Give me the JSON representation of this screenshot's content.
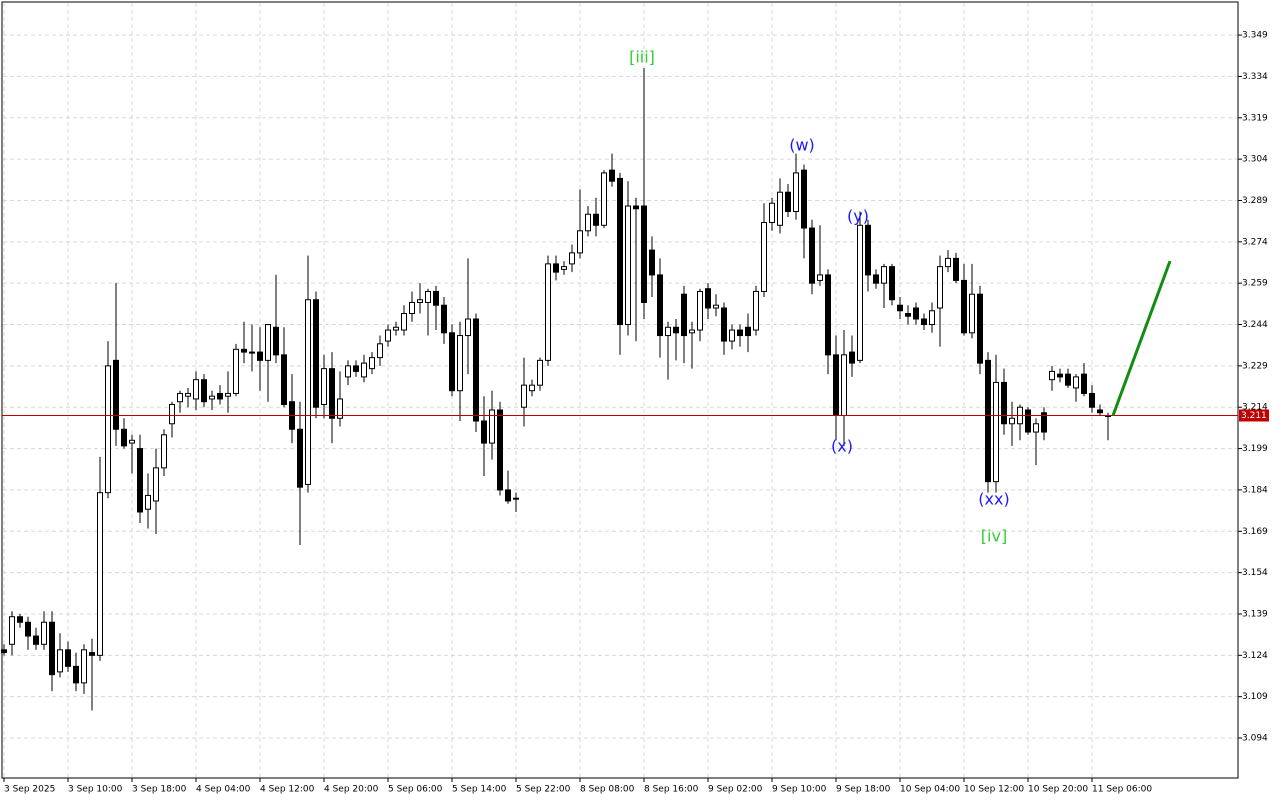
{
  "chart_data": {
    "type": "candlestick",
    "categories": [
      "3 Sep 2025",
      null,
      null,
      null,
      null,
      null,
      null,
      null,
      "3 Sep 10:00",
      null,
      null,
      null,
      null,
      null,
      null,
      null,
      "3 Sep 18:00",
      null,
      null,
      null,
      null,
      null,
      null,
      null,
      "4 Sep 04:00",
      null,
      null,
      null,
      null,
      null,
      null,
      null,
      "4 Sep 12:00",
      null,
      null,
      null,
      null,
      null,
      null,
      null,
      "4 Sep 20:00",
      null,
      null,
      null,
      null,
      null,
      null,
      null,
      "5 Sep 06:00",
      null,
      null,
      null,
      null,
      null,
      null,
      null,
      "5 Sep 14:00",
      null,
      null,
      null,
      null,
      null,
      null,
      null,
      "5 Sep 22:00",
      null,
      null,
      null,
      null,
      null,
      null,
      null,
      "8 Sep 08:00",
      null,
      null,
      null,
      null,
      null,
      null,
      null,
      "8 Sep 16:00",
      null,
      null,
      null,
      null,
      null,
      null,
      null,
      "9 Sep 02:00",
      null,
      null,
      null,
      null,
      null,
      null,
      null,
      "9 Sep 10:00",
      null,
      null,
      null,
      null,
      null,
      null,
      null,
      "9 Sep 18:00",
      null,
      null,
      null,
      null,
      null,
      null,
      null,
      "10 Sep 04:00",
      null,
      null,
      null,
      null,
      null,
      null,
      null,
      "10 Sep 12:00",
      null,
      null,
      null,
      null,
      null,
      null,
      null,
      "10 Sep 20:00",
      null,
      null,
      null,
      null,
      null,
      null,
      null,
      "11 Sep 06:00",
      null,
      null
    ],
    "open": [
      3.126,
      3.128,
      3.138,
      3.136,
      3.131,
      3.128,
      3.136,
      3.118,
      3.126,
      3.12,
      3.114,
      3.125,
      3.124,
      3.183,
      3.231,
      3.206,
      3.201,
      3.199,
      3.177,
      3.18,
      3.192,
      3.208,
      3.216,
      3.218,
      3.217,
      3.224,
      3.217,
      3.219,
      3.218,
      3.219,
      3.235,
      3.234,
      3.234,
      3.231,
      3.243,
      3.233,
      3.216,
      3.206,
      3.186,
      3.253,
      3.215,
      3.228,
      3.21,
      3.225,
      3.229,
      3.225,
      3.228,
      3.232,
      3.238,
      3.242,
      3.242,
      3.248,
      3.252,
      3.252,
      3.256,
      3.251,
      3.241,
      3.22,
      3.24,
      3.246,
      3.209,
      3.201,
      3.213,
      3.184,
      3.181,
      3.214,
      3.22,
      3.222,
      3.231,
      3.266,
      3.264,
      3.266,
      3.27,
      3.278,
      3.284,
      3.28,
      3.3,
      3.297,
      3.244,
      3.287,
      3.287,
      3.271,
      3.262,
      3.24,
      3.243,
      3.255,
      3.241,
      3.242,
      3.257,
      3.25,
      3.25,
      3.238,
      3.242,
      3.243,
      3.242,
      3.256,
      3.281,
      3.28,
      3.292,
      3.285,
      3.3,
      3.279,
      3.26,
      3.262,
      3.233,
      3.211,
      3.234,
      3.231,
      3.28,
      3.262,
      3.259,
      3.265,
      3.251,
      3.248,
      3.25,
      3.246,
      3.244,
      3.25,
      3.265,
      3.268,
      3.26,
      3.241,
      3.255,
      3.231,
      3.187,
      3.223,
      3.208,
      3.208,
      3.213,
      3.205,
      3.212,
      3.224,
      3.226,
      3.226,
      3.221,
      3.226,
      3.219,
      3.213,
      3.211
    ],
    "high": [
      3.128,
      3.14,
      3.139,
      3.138,
      3.134,
      3.14,
      3.14,
      3.132,
      3.129,
      3.125,
      3.128,
      3.13,
      3.196,
      3.238,
      3.259,
      3.21,
      3.204,
      3.204,
      3.19,
      3.199,
      3.206,
      3.216,
      3.22,
      3.221,
      3.227,
      3.226,
      3.22,
      3.222,
      3.227,
      3.237,
      3.245,
      3.244,
      3.243,
      3.244,
      3.262,
      3.243,
      3.226,
      3.216,
      3.269,
      3.256,
      3.233,
      3.234,
      3.227,
      3.231,
      3.231,
      3.233,
      3.234,
      3.24,
      3.244,
      3.245,
      3.251,
      3.256,
      3.259,
      3.257,
      3.258,
      3.254,
      3.244,
      3.245,
      3.268,
      3.248,
      3.218,
      3.22,
      3.216,
      3.191,
      3.183,
      3.232,
      3.224,
      3.232,
      3.269,
      3.269,
      3.267,
      3.273,
      3.293,
      3.287,
      3.29,
      3.3,
      3.306,
      3.299,
      3.296,
      3.29,
      3.337,
      3.276,
      3.268,
      3.245,
      3.246,
      3.258,
      3.245,
      3.257,
      3.259,
      3.255,
      3.252,
      3.244,
      3.244,
      3.248,
      3.258,
      3.288,
      3.29,
      3.297,
      3.295,
      3.306,
      3.302,
      3.282,
      3.28,
      3.264,
      3.24,
      3.242,
      3.24,
      3.285,
      3.282,
      3.264,
      3.266,
      3.266,
      3.254,
      3.251,
      3.252,
      3.248,
      3.252,
      3.269,
      3.271,
      3.27,
      3.266,
      3.266,
      3.258,
      3.234,
      3.233,
      3.228,
      3.216,
      3.215,
      3.214,
      3.21,
      3.214,
      3.229,
      3.228,
      3.228,
      3.226,
      3.23,
      3.222,
      3.215,
      3.212
    ],
    "low": [
      3.124,
      3.124,
      3.134,
      3.126,
      3.126,
      3.126,
      3.111,
      3.116,
      3.118,
      3.111,
      3.11,
      3.104,
      3.122,
      3.181,
      3.2,
      3.199,
      3.19,
      3.172,
      3.17,
      3.168,
      3.189,
      3.203,
      3.212,
      3.214,
      3.213,
      3.214,
      3.213,
      3.215,
      3.212,
      3.218,
      3.23,
      3.227,
      3.22,
      3.216,
      3.23,
      3.214,
      3.201,
      3.164,
      3.183,
      3.21,
      3.21,
      3.201,
      3.207,
      3.222,
      3.225,
      3.223,
      3.226,
      3.229,
      3.236,
      3.24,
      3.24,
      3.245,
      3.248,
      3.24,
      3.242,
      3.237,
      3.218,
      3.209,
      3.226,
      3.205,
      3.189,
      3.195,
      3.182,
      3.179,
      3.176,
      3.207,
      3.218,
      3.22,
      3.229,
      3.26,
      3.262,
      3.263,
      3.268,
      3.276,
      3.276,
      3.279,
      3.294,
      3.233,
      3.24,
      3.238,
      3.246,
      3.254,
      3.232,
      3.224,
      3.231,
      3.23,
      3.228,
      3.238,
      3.246,
      3.247,
      3.233,
      3.235,
      3.236,
      3.234,
      3.24,
      3.254,
      3.278,
      3.277,
      3.283,
      3.282,
      3.268,
      3.255,
      3.258,
      3.226,
      3.202,
      3.2,
      3.225,
      3.23,
      3.256,
      3.257,
      3.25,
      3.251,
      3.246,
      3.244,
      3.244,
      3.242,
      3.241,
      3.236,
      3.263,
      3.259,
      3.24,
      3.239,
      3.226,
      3.183,
      3.183,
      3.204,
      3.2,
      3.202,
      3.204,
      3.193,
      3.202,
      3.22,
      3.223,
      3.221,
      3.216,
      3.218,
      3.212,
      3.211,
      3.202
    ],
    "close": [
      3.125,
      3.138,
      3.136,
      3.131,
      3.128,
      3.136,
      3.117,
      3.126,
      3.12,
      3.114,
      3.126,
      3.124,
      3.183,
      3.229,
      3.206,
      3.2,
      3.202,
      3.176,
      3.182,
      3.192,
      3.204,
      3.215,
      3.219,
      3.219,
      3.224,
      3.216,
      3.218,
      3.217,
      3.219,
      3.235,
      3.234,
      3.234,
      3.231,
      3.244,
      3.233,
      3.215,
      3.206,
      3.185,
      3.253,
      3.214,
      3.228,
      3.21,
      3.217,
      3.229,
      3.227,
      3.23,
      3.232,
      3.237,
      3.242,
      3.243,
      3.248,
      3.252,
      3.253,
      3.256,
      3.251,
      3.241,
      3.22,
      3.24,
      3.246,
      3.209,
      3.201,
      3.213,
      3.184,
      3.18,
      3.181,
      3.222,
      3.222,
      3.231,
      3.266,
      3.263,
      3.265,
      3.27,
      3.278,
      3.284,
      3.28,
      3.299,
      3.296,
      3.244,
      3.287,
      3.286,
      3.252,
      3.262,
      3.24,
      3.243,
      3.241,
      3.24,
      3.242,
      3.256,
      3.25,
      3.251,
      3.238,
      3.242,
      3.24,
      3.24,
      3.256,
      3.281,
      3.288,
      3.292,
      3.285,
      3.299,
      3.279,
      3.259,
      3.262,
      3.233,
      3.211,
      3.233,
      3.23,
      3.28,
      3.262,
      3.259,
      3.265,
      3.253,
      3.249,
      3.247,
      3.246,
      3.244,
      3.249,
      3.265,
      3.268,
      3.26,
      3.241,
      3.255,
      3.23,
      3.187,
      3.223,
      3.208,
      3.21,
      3.214,
      3.205,
      3.208,
      3.205,
      3.227,
      3.225,
      3.222,
      3.225,
      3.219,
      3.214,
      3.212,
      3.211
    ],
    "ylim": [
      3.0795,
      3.361
    ],
    "yticks": [
      3.094,
      3.109,
      3.124,
      3.139,
      3.154,
      3.169,
      3.184,
      3.199,
      3.214,
      3.229,
      3.244,
      3.259,
      3.274,
      3.289,
      3.304,
      3.319,
      3.334,
      3.349
    ],
    "grid": true,
    "current_price": 3.211,
    "current_price_color": "#c00000",
    "annotations": [
      {
        "text": "[iii]",
        "color": "#33cc33"
      },
      {
        "text": "(w)",
        "color": "#1a1aff"
      },
      {
        "text": "(y)",
        "color": "#1a1aff"
      },
      {
        "text": "(x)",
        "color": "#1a1aff"
      },
      {
        "text": "(xx)",
        "color": "#1a1aff"
      },
      {
        "text": "[iv]",
        "color": "#33cc33"
      }
    ],
    "forecast": {
      "values": [
        3.211,
        3.267
      ],
      "color": "#128c12"
    }
  }
}
